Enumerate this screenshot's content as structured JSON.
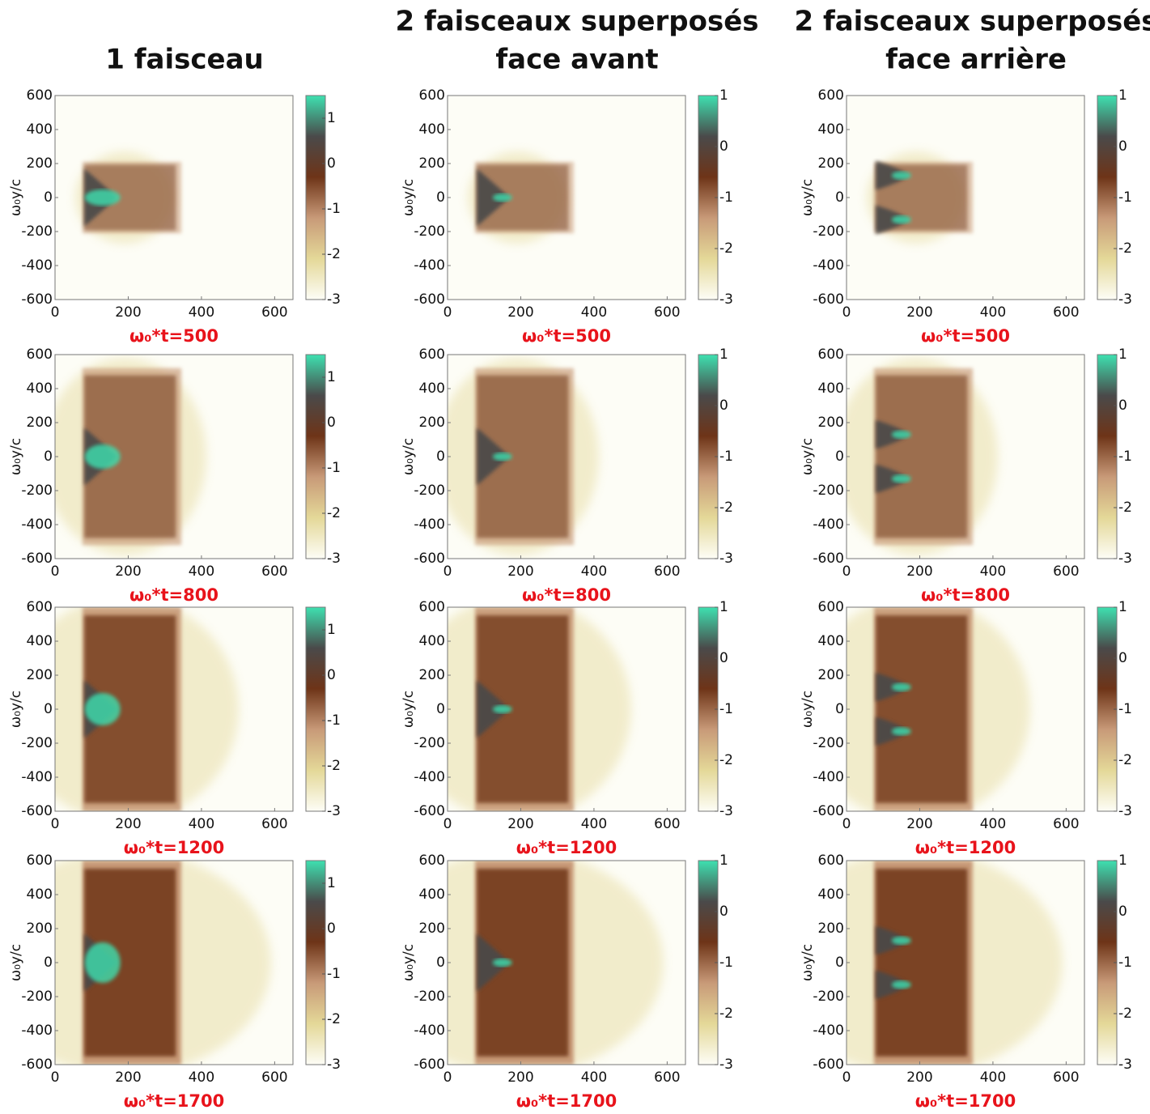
{
  "chart_data": [
    {
      "type": "heatmap",
      "title": [
        "1 faisceau"
      ],
      "ylabel": "ω₀y/c",
      "xlabel": "ω₀*t=500",
      "xlim": [
        0,
        650
      ],
      "ylim": [
        -600,
        600
      ],
      "xticks": [
        0,
        200,
        400,
        600
      ],
      "yticks": [
        -600,
        -400,
        -200,
        0,
        200,
        400,
        600
      ],
      "zlim": [
        -3,
        1.5
      ],
      "zticks": [
        -3,
        -2,
        -1,
        0,
        1
      ],
      "colormap": [
        "#fdfdf6",
        "#e4d898",
        "#c89a78",
        "#6e3418",
        "#4a4a4a",
        "#3ee0b0"
      ]
    },
    {
      "type": "heatmap",
      "title": [
        "2 faisceaux superposés",
        "face avant"
      ],
      "ylabel": "ω₀y/c",
      "xlabel": "ω₀*t=500",
      "xlim": [
        0,
        650
      ],
      "ylim": [
        -600,
        600
      ],
      "xticks": [
        0,
        200,
        400,
        600
      ],
      "yticks": [
        -600,
        -400,
        -200,
        0,
        200,
        400,
        600
      ],
      "zlim": [
        -3,
        1
      ],
      "zticks": [
        -3,
        -2,
        -1,
        0,
        1
      ],
      "colormap": [
        "#fdfdf6",
        "#e4d898",
        "#c89a78",
        "#6e3418",
        "#4a4a4a",
        "#3ee0b0"
      ]
    },
    {
      "type": "heatmap",
      "title": [
        "2 faisceaux superposés",
        "face arrière"
      ],
      "ylabel": "ω₀y/c",
      "xlabel": "ω₀*t=500",
      "xlim": [
        0,
        650
      ],
      "ylim": [
        -600,
        600
      ],
      "xticks": [
        0,
        200,
        400,
        600
      ],
      "yticks": [
        -600,
        -400,
        -200,
        0,
        200,
        400,
        600
      ],
      "zlim": [
        -3,
        1
      ],
      "zticks": [
        -3,
        -2,
        -1,
        0,
        1
      ],
      "colormap": [
        "#fdfdf6",
        "#e4d898",
        "#c89a78",
        "#6e3418",
        "#4a4a4a",
        "#3ee0b0"
      ]
    },
    {
      "type": "heatmap",
      "ylabel": "ω₀y/c",
      "xlabel": "ω₀*t=800",
      "xlim": [
        0,
        650
      ],
      "ylim": [
        -600,
        600
      ],
      "xticks": [
        0,
        200,
        400,
        600
      ],
      "yticks": [
        -600,
        -400,
        -200,
        0,
        200,
        400,
        600
      ],
      "zlim": [
        -3,
        1.5
      ],
      "zticks": [
        -3,
        -2,
        -1,
        0,
        1
      ],
      "colormap": [
        "#fdfdf6",
        "#e4d898",
        "#c89a78",
        "#6e3418",
        "#4a4a4a",
        "#3ee0b0"
      ]
    },
    {
      "type": "heatmap",
      "ylabel": "ω₀y/c",
      "xlabel": "ω₀*t=800",
      "xlim": [
        0,
        650
      ],
      "ylim": [
        -600,
        600
      ],
      "xticks": [
        0,
        200,
        400,
        600
      ],
      "yticks": [
        -600,
        -400,
        -200,
        0,
        200,
        400,
        600
      ],
      "zlim": [
        -3,
        1
      ],
      "zticks": [
        -3,
        -2,
        -1,
        0,
        1
      ],
      "colormap": [
        "#fdfdf6",
        "#e4d898",
        "#c89a78",
        "#6e3418",
        "#4a4a4a",
        "#3ee0b0"
      ]
    },
    {
      "type": "heatmap",
      "ylabel": "ω₀y/c",
      "xlabel": "ω₀*t=800",
      "xlim": [
        0,
        650
      ],
      "ylim": [
        -600,
        600
      ],
      "xticks": [
        0,
        200,
        400,
        600
      ],
      "yticks": [
        -600,
        -400,
        -200,
        0,
        200,
        400,
        600
      ],
      "zlim": [
        -3,
        1
      ],
      "zticks": [
        -3,
        -2,
        -1,
        0,
        1
      ],
      "colormap": [
        "#fdfdf6",
        "#e4d898",
        "#c89a78",
        "#6e3418",
        "#4a4a4a",
        "#3ee0b0"
      ]
    },
    {
      "type": "heatmap",
      "ylabel": "ω₀y/c",
      "xlabel": "ω₀*t=1200",
      "xlim": [
        0,
        650
      ],
      "ylim": [
        -600,
        600
      ],
      "xticks": [
        0,
        200,
        400,
        600
      ],
      "yticks": [
        -600,
        -400,
        -200,
        0,
        200,
        400,
        600
      ],
      "zlim": [
        -3,
        1.5
      ],
      "zticks": [
        -3,
        -2,
        -1,
        0,
        1
      ],
      "colormap": [
        "#fdfdf6",
        "#e4d898",
        "#c89a78",
        "#6e3418",
        "#4a4a4a",
        "#3ee0b0"
      ]
    },
    {
      "type": "heatmap",
      "ylabel": "ω₀y/c",
      "xlabel": "ω₀*t=1200",
      "xlim": [
        0,
        650
      ],
      "ylim": [
        -600,
        600
      ],
      "xticks": [
        0,
        200,
        400,
        600
      ],
      "yticks": [
        -600,
        -400,
        -200,
        0,
        200,
        400,
        600
      ],
      "zlim": [
        -3,
        1
      ],
      "zticks": [
        -3,
        -2,
        -1,
        0,
        1
      ],
      "colormap": [
        "#fdfdf6",
        "#e4d898",
        "#c89a78",
        "#6e3418",
        "#4a4a4a",
        "#3ee0b0"
      ]
    },
    {
      "type": "heatmap",
      "ylabel": "ω₀y/c",
      "xlabel": "ω₀*t=1200",
      "xlim": [
        0,
        650
      ],
      "ylim": [
        -600,
        600
      ],
      "xticks": [
        0,
        200,
        400,
        600
      ],
      "yticks": [
        -600,
        -400,
        -200,
        0,
        200,
        400,
        600
      ],
      "zlim": [
        -3,
        1
      ],
      "zticks": [
        -3,
        -2,
        -1,
        0,
        1
      ],
      "colormap": [
        "#fdfdf6",
        "#e4d898",
        "#c89a78",
        "#6e3418",
        "#4a4a4a",
        "#3ee0b0"
      ]
    },
    {
      "type": "heatmap",
      "ylabel": "ω₀y/c",
      "xlabel": "ω₀*t=1700",
      "xlim": [
        0,
        650
      ],
      "ylim": [
        -600,
        600
      ],
      "xticks": [
        0,
        200,
        400,
        600
      ],
      "yticks": [
        -600,
        -400,
        -200,
        0,
        200,
        400,
        600
      ],
      "zlim": [
        -3,
        1.5
      ],
      "zticks": [
        -3,
        -2,
        -1,
        0,
        1
      ],
      "colormap": [
        "#fdfdf6",
        "#e4d898",
        "#c89a78",
        "#6e3418",
        "#4a4a4a",
        "#3ee0b0"
      ]
    },
    {
      "type": "heatmap",
      "ylabel": "ω₀y/c",
      "xlabel": "ω₀*t=1700",
      "xlim": [
        0,
        650
      ],
      "ylim": [
        -600,
        600
      ],
      "xticks": [
        0,
        200,
        400,
        600
      ],
      "yticks": [
        -600,
        -400,
        -200,
        0,
        200,
        400,
        600
      ],
      "zlim": [
        -3,
        1
      ],
      "zticks": [
        -3,
        -2,
        -1,
        0,
        1
      ],
      "colormap": [
        "#fdfdf6",
        "#e4d898",
        "#c89a78",
        "#6e3418",
        "#4a4a4a",
        "#3ee0b0"
      ]
    },
    {
      "type": "heatmap",
      "ylabel": "ω₀y/c",
      "xlabel": "ω₀*t=1700",
      "xlim": [
        0,
        650
      ],
      "ylim": [
        -600,
        600
      ],
      "xticks": [
        0,
        200,
        400,
        600
      ],
      "yticks": [
        -600,
        -400,
        -200,
        0,
        200,
        400,
        600
      ],
      "zlim": [
        -3,
        1
      ],
      "zticks": [
        -3,
        -2,
        -1,
        0,
        1
      ],
      "colormap": [
        "#fdfdf6",
        "#e4d898",
        "#c89a78",
        "#6e3418",
        "#4a4a4a",
        "#3ee0b0"
      ]
    }
  ]
}
